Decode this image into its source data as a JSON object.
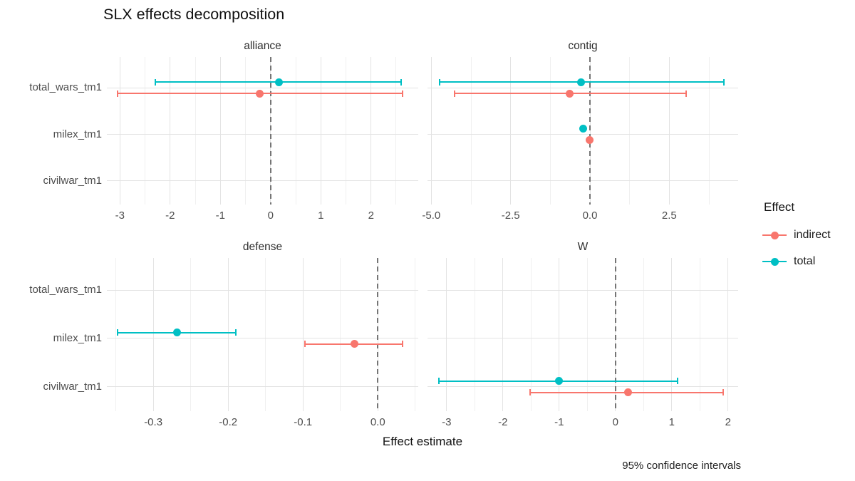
{
  "chart_data": {
    "type": "scatter",
    "title": "SLX effects decomposition",
    "xlabel": "Effect estimate",
    "caption": "95% confidence intervals",
    "grid": true,
    "zero_reference_line": "dashed",
    "y_categories": [
      "total_wars_tm1",
      "milex_tm1",
      "civilwar_tm1"
    ],
    "legend": {
      "title": "Effect",
      "position": "right",
      "entries": [
        {
          "label": "indirect",
          "color": "#F8766D"
        },
        {
          "label": "total",
          "color": "#00BFC4"
        }
      ]
    },
    "panels": [
      {
        "name": "alliance",
        "x_domain": [
          -3.26,
          2.94
        ],
        "major_ticks": [
          {
            "value": -3,
            "label": "-3"
          },
          {
            "value": -2,
            "label": "-2"
          },
          {
            "value": -1,
            "label": "-1"
          },
          {
            "value": 0,
            "label": "0"
          },
          {
            "value": 1,
            "label": "1"
          },
          {
            "value": 2,
            "label": "2"
          }
        ],
        "minor_ticks": [
          -2.5,
          -1.5,
          -0.5,
          0.5,
          1.5,
          2.5
        ],
        "points": [
          {
            "category": "total_wars_tm1",
            "effect": "total",
            "est": 0.17,
            "lo": -2.3,
            "hi": 2.6
          },
          {
            "category": "total_wars_tm1",
            "effect": "indirect",
            "est": -0.21,
            "lo": -3.05,
            "hi": 2.63
          }
        ]
      },
      {
        "name": "contig",
        "x_domain": [
          -5.12,
          4.67
        ],
        "major_ticks": [
          {
            "value": -5,
            "label": "-5.0"
          },
          {
            "value": -2.5,
            "label": "-2.5"
          },
          {
            "value": 0,
            "label": "0.0"
          },
          {
            "value": 2.5,
            "label": "2.5"
          }
        ],
        "minor_ticks": [
          -3.75,
          -1.25,
          1.25,
          3.75
        ],
        "points": [
          {
            "category": "total_wars_tm1",
            "effect": "total",
            "est": -0.27,
            "lo": -4.74,
            "hi": 4.22
          },
          {
            "category": "total_wars_tm1",
            "effect": "indirect",
            "est": -0.63,
            "lo": -4.27,
            "hi": 3.03
          },
          {
            "category": "milex_tm1",
            "effect": "total",
            "est": -0.22,
            "lo": -0.22,
            "hi": -0.22
          },
          {
            "category": "milex_tm1",
            "effect": "indirect",
            "est": -0.02,
            "lo": -0.02,
            "hi": -0.02
          }
        ]
      },
      {
        "name": "defense",
        "x_domain": [
          -0.362,
          0.054
        ],
        "major_ticks": [
          {
            "value": -0.3,
            "label": "-0.3"
          },
          {
            "value": -0.2,
            "label": "-0.2"
          },
          {
            "value": -0.1,
            "label": "-0.1"
          },
          {
            "value": 0,
            "label": "0.0"
          }
        ],
        "minor_ticks": [
          -0.35,
          -0.25,
          -0.15,
          -0.05,
          0.05
        ],
        "points": [
          {
            "category": "milex_tm1",
            "effect": "total",
            "est": -0.268,
            "lo": -0.348,
            "hi": -0.19
          },
          {
            "category": "milex_tm1",
            "effect": "indirect",
            "est": -0.031,
            "lo": -0.097,
            "hi": 0.033
          }
        ]
      },
      {
        "name": "W",
        "x_domain": [
          -3.34,
          2.18
        ],
        "major_ticks": [
          {
            "value": -3,
            "label": "-3"
          },
          {
            "value": -2,
            "label": "-2"
          },
          {
            "value": -1,
            "label": "-1"
          },
          {
            "value": 0,
            "label": "0"
          },
          {
            "value": 1,
            "label": "1"
          },
          {
            "value": 2,
            "label": "2"
          }
        ],
        "minor_ticks": [
          -2.5,
          -1.5,
          -0.5,
          0.5,
          1.5
        ],
        "points": [
          {
            "category": "civilwar_tm1",
            "effect": "total",
            "est": -1.01,
            "lo": -3.14,
            "hi": 1.1
          },
          {
            "category": "civilwar_tm1",
            "effect": "indirect",
            "est": 0.22,
            "lo": -1.52,
            "hi": 1.92
          }
        ]
      }
    ]
  }
}
